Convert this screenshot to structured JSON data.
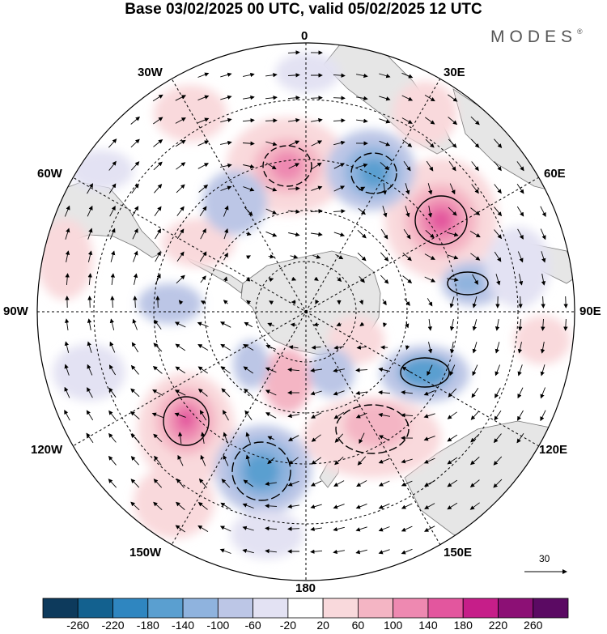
{
  "title": "Base 03/02/2025 00 UTC, valid 05/02/2025 12 UTC",
  "brand": "MODES",
  "brand_mark": "®",
  "meridian_labels": {
    "lon_0": "0",
    "lon_30e": "30E",
    "lon_60e": "60E",
    "lon_90e": "90E",
    "lon_120e": "120E",
    "lon_150e": "150E",
    "lon_180": "180",
    "lon_150w": "150W",
    "lon_120w": "120W",
    "lon_90w": "90W",
    "lon_60w": "60W",
    "lon_30w": "30W"
  },
  "reference_vector": {
    "value": "30"
  },
  "colorbar": {
    "labels": [
      "-260",
      "-220",
      "-180",
      "-140",
      "-100",
      "-60",
      "-20",
      "20",
      "60",
      "100",
      "140",
      "180",
      "220",
      "260"
    ],
    "colors": [
      "#0d3a5c",
      "#13618f",
      "#2f86c0",
      "#5a9fd0",
      "#8fb3de",
      "#bcc6e6",
      "#e3e2f3",
      "#ffffff",
      "#f9d9dc",
      "#f4b5c4",
      "#ee89b1",
      "#e3569e",
      "#c61e89",
      "#8c1075",
      "#5b0a63"
    ]
  },
  "colors": {
    "land": "#e6e6e6",
    "negative_anomaly": "#3f7fb8",
    "positive_anomaly": "#e05a9f"
  },
  "icons": [
    "north-arrow-reference",
    "wind-vector-arrow"
  ]
}
